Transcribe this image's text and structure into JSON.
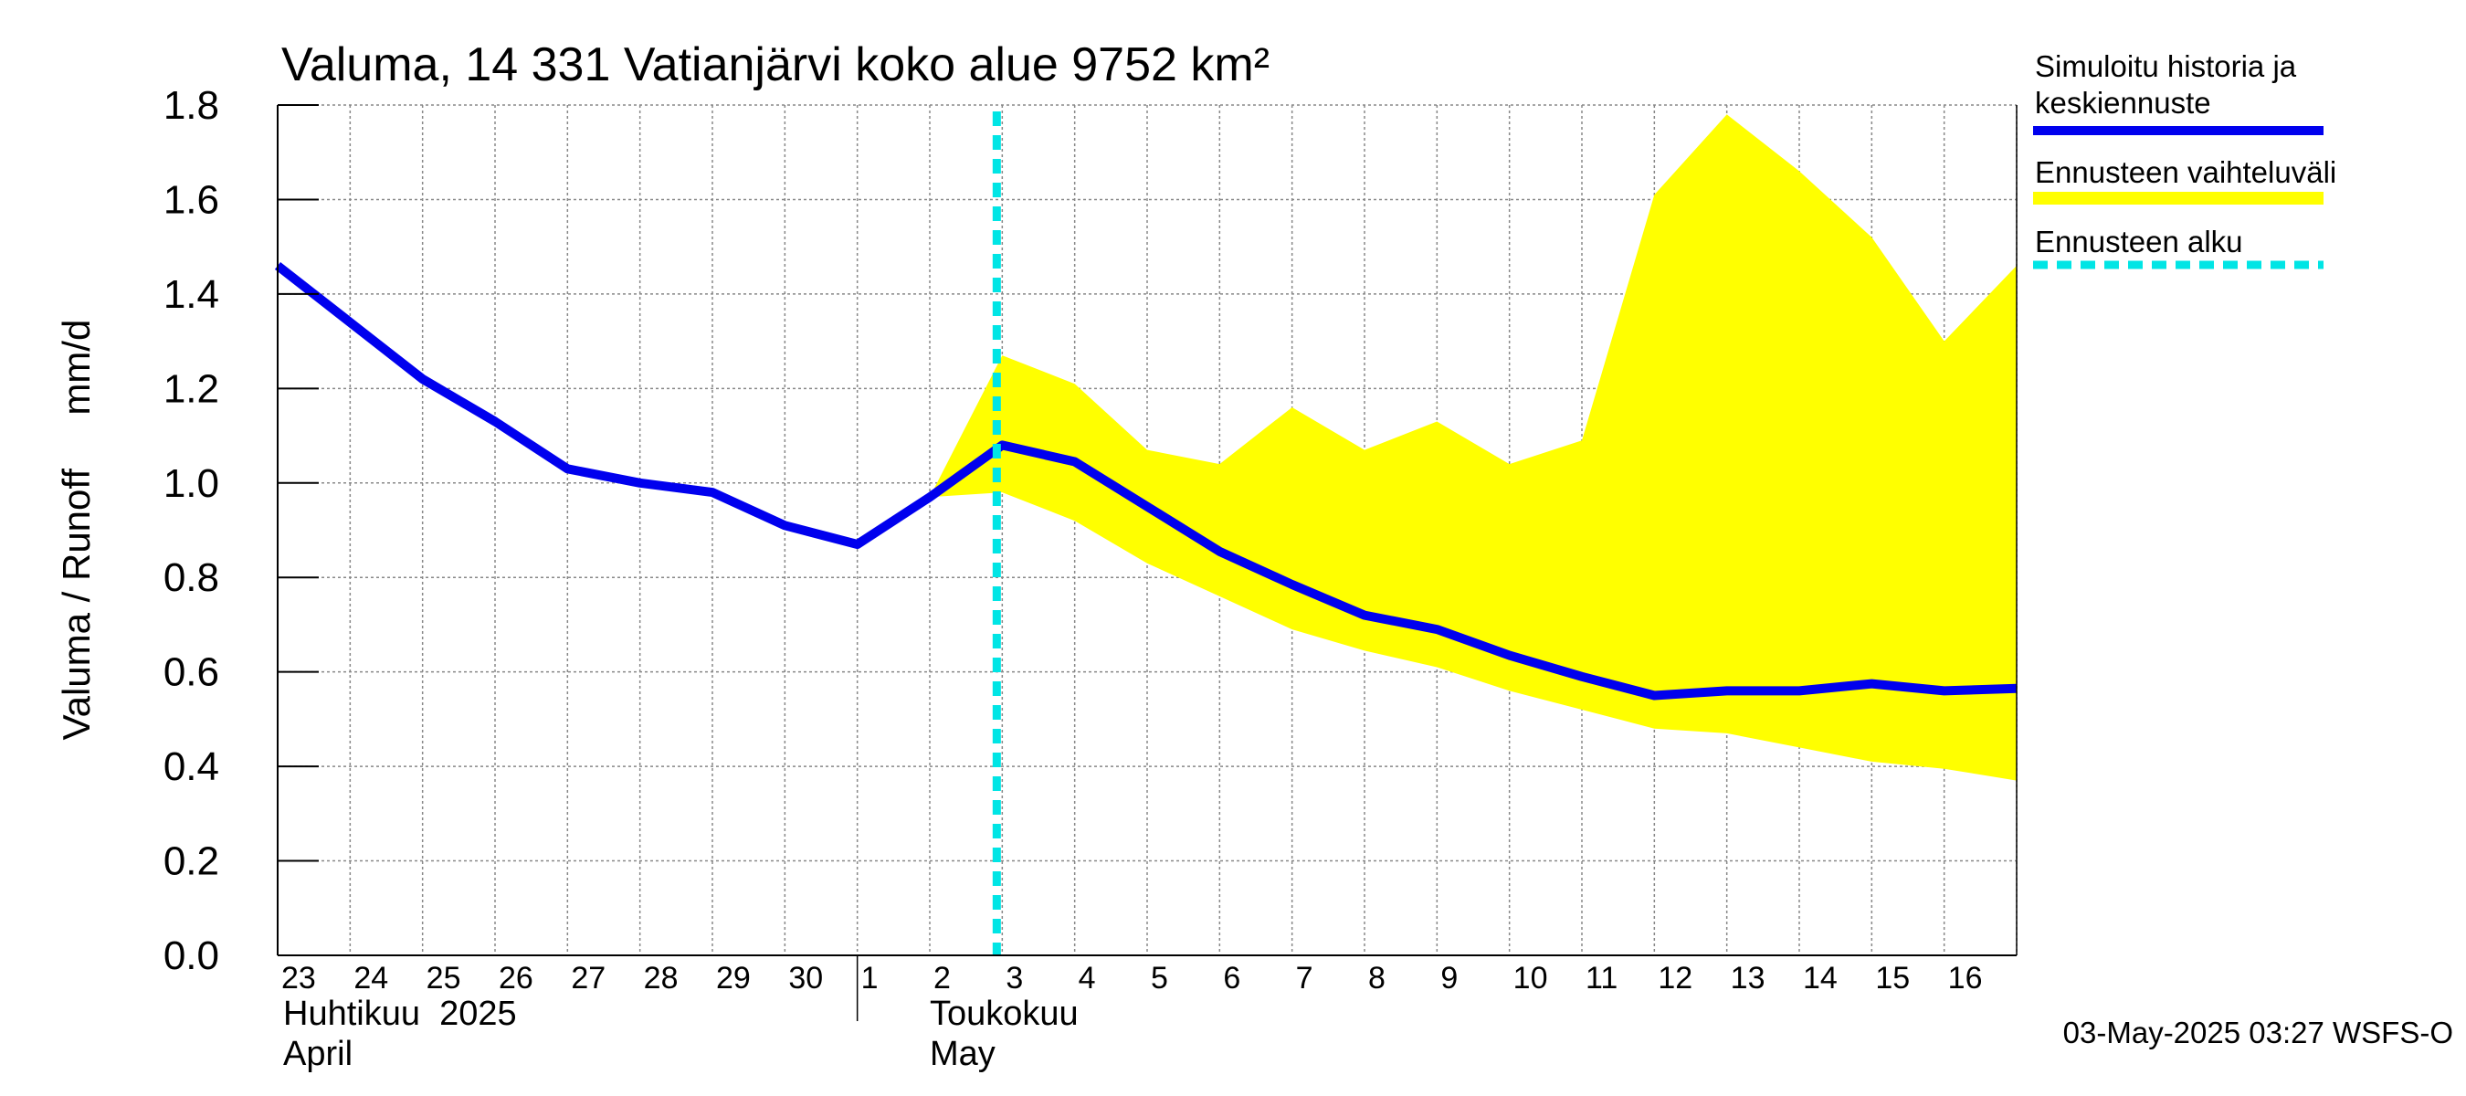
{
  "chart_data": {
    "type": "line",
    "title": "Valuma, 14 331 Vatianjärvi koko alue 9752 km²",
    "ylabel": "Valuma / Runoff     mm/d",
    "ylim": [
      0.0,
      1.8
    ],
    "yticks": [
      "0.0",
      "0.2",
      "0.4",
      "0.6",
      "0.8",
      "1.0",
      "1.2",
      "1.4",
      "1.6",
      "1.8"
    ],
    "x_day_labels": [
      "23",
      "24",
      "25",
      "26",
      "27",
      "28",
      "29",
      "30",
      "1",
      "2",
      "3",
      "4",
      "5",
      "6",
      "7",
      "8",
      "9",
      "10",
      "11",
      "12",
      "13",
      "14",
      "15",
      "16"
    ],
    "month_labels": [
      {
        "fi": "Huhtikuu  2025",
        "en": "April"
      },
      {
        "fi": "Toukokuu",
        "en": "May"
      }
    ],
    "grid": true,
    "legend_position": "right",
    "series": [
      {
        "name": "Simuloitu historia ja keskiennuste",
        "color": "#0000ee",
        "x": [
          "2025-04-23",
          "2025-04-24",
          "2025-04-25",
          "2025-04-26",
          "2025-04-27",
          "2025-04-28",
          "2025-04-29",
          "2025-04-30",
          "2025-05-01",
          "2025-05-02",
          "2025-05-03",
          "2025-05-04",
          "2025-05-05",
          "2025-05-06",
          "2025-05-07",
          "2025-05-08",
          "2025-05-09",
          "2025-05-10",
          "2025-05-11",
          "2025-05-12",
          "2025-05-13",
          "2025-05-14",
          "2025-05-15",
          "2025-05-16",
          "2025-05-17"
        ],
        "values": [
          1.46,
          1.34,
          1.22,
          1.13,
          1.03,
          1.0,
          0.98,
          0.91,
          0.87,
          0.97,
          1.08,
          1.045,
          0.95,
          0.855,
          0.785,
          0.72,
          0.69,
          0.635,
          0.59,
          0.55,
          0.56,
          0.56,
          0.575,
          0.56,
          0.565
        ]
      },
      {
        "name": "Ennusteen vaihteluväli",
        "color": "#ffff00",
        "x": [
          "2025-05-02",
          "2025-05-03",
          "2025-05-04",
          "2025-05-05",
          "2025-05-06",
          "2025-05-07",
          "2025-05-08",
          "2025-05-09",
          "2025-05-10",
          "2025-05-11",
          "2025-05-12",
          "2025-05-13",
          "2025-05-14",
          "2025-05-15",
          "2025-05-16",
          "2025-05-17"
        ],
        "upper": [
          0.97,
          1.27,
          1.21,
          1.07,
          1.04,
          1.16,
          1.07,
          1.13,
          1.04,
          1.09,
          1.61,
          1.78,
          1.66,
          1.52,
          1.3,
          1.46
        ],
        "lower": [
          0.97,
          0.98,
          0.92,
          0.83,
          0.76,
          0.69,
          0.645,
          0.61,
          0.56,
          0.52,
          0.48,
          0.47,
          0.44,
          0.41,
          0.395,
          0.37
        ]
      },
      {
        "name": "Ennusteen alku",
        "color": "#00e5e5",
        "x": "2025-05-03",
        "style": "dashed"
      }
    ],
    "footer": "03-May-2025 03:27 WSFS-O"
  }
}
